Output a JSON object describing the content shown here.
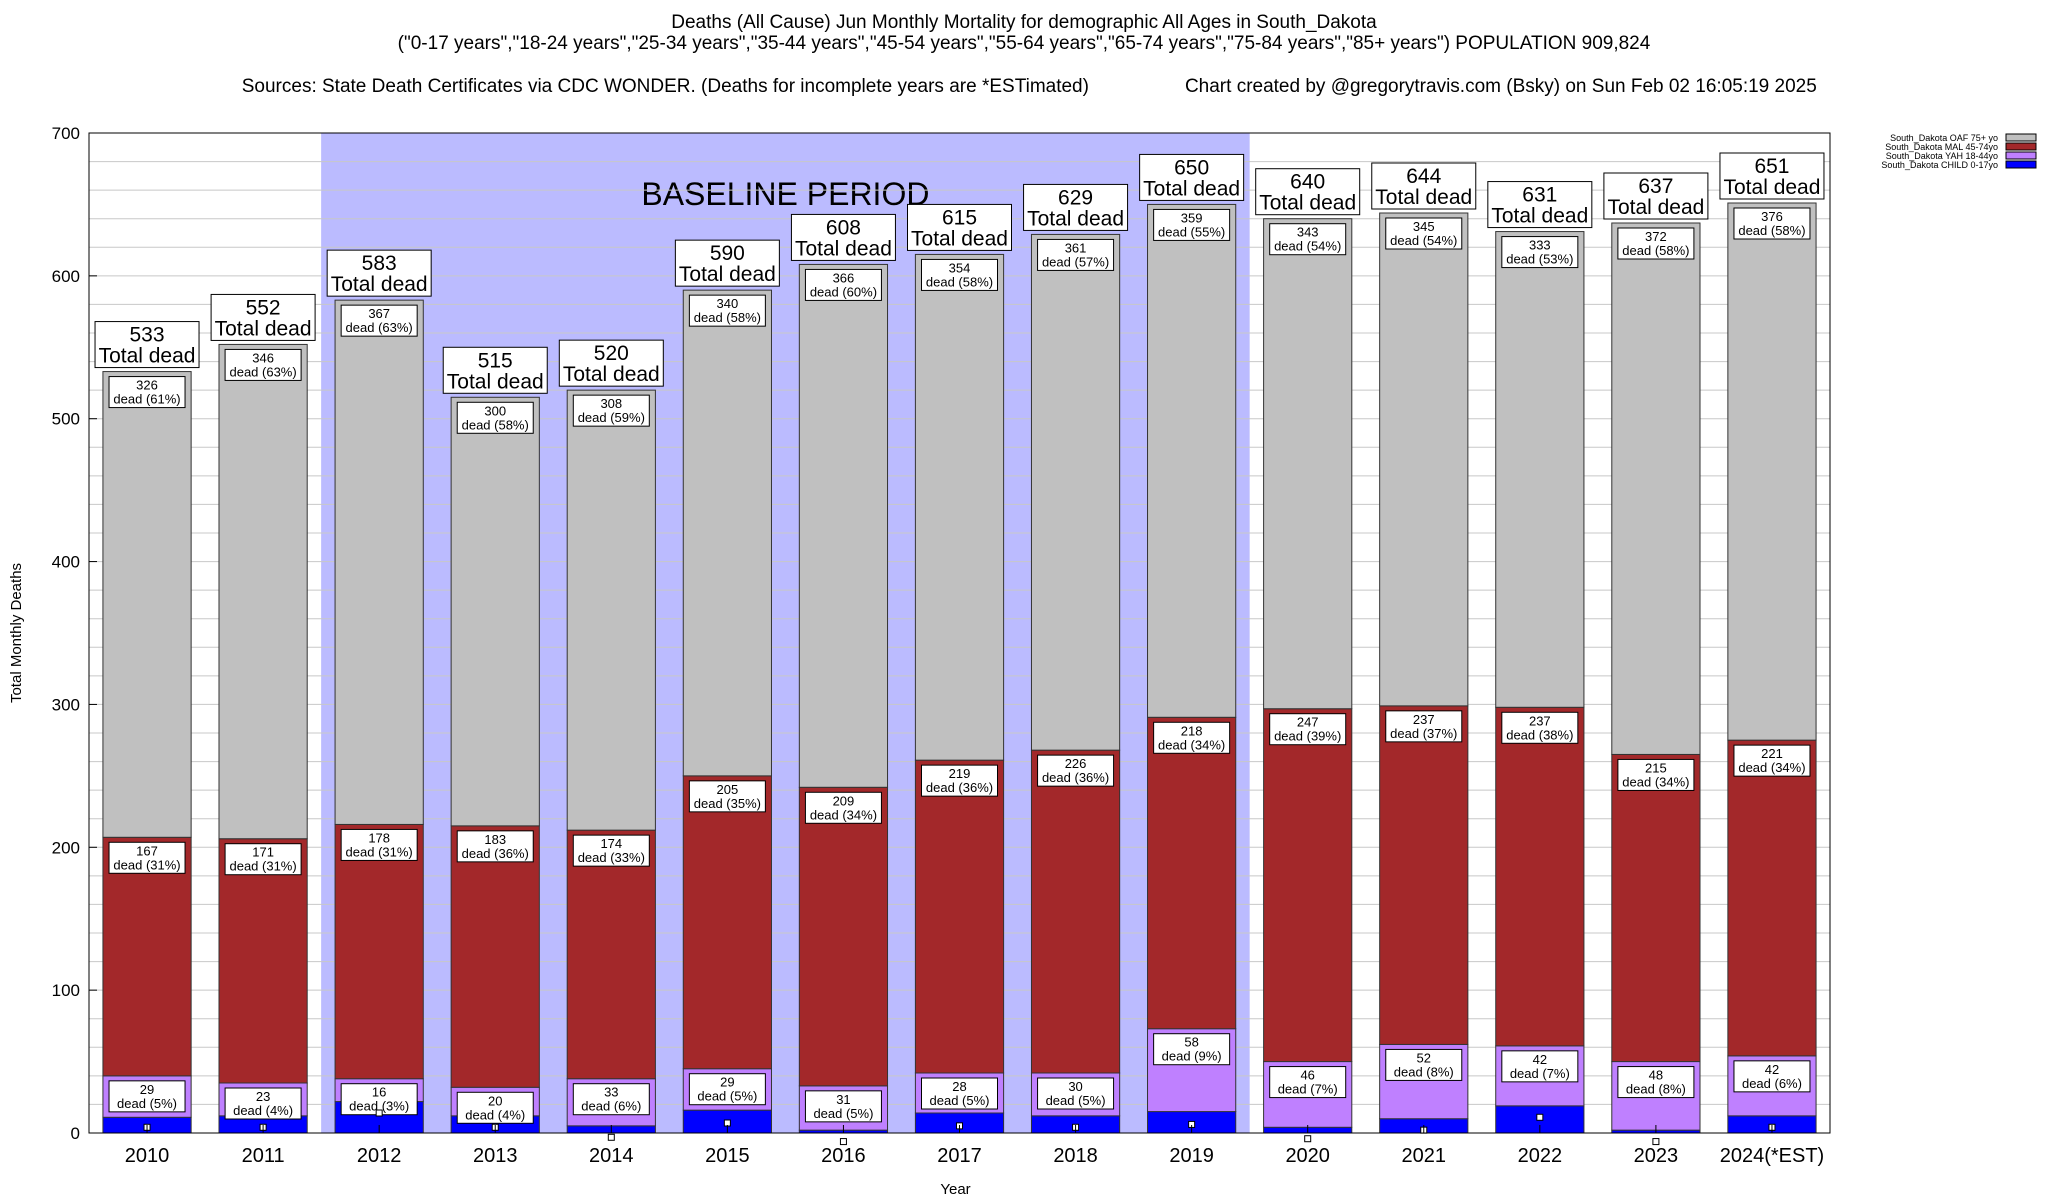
{
  "header": {
    "title": "Deaths (All Cause) Jun Monthly Mortality for demographic All Ages in South_Dakota",
    "subtitle": "(\"0-17 years\",\"18-24 years\",\"25-34 years\",\"35-44 years\",\"45-54 years\",\"55-64 years\",\"65-74 years\",\"75-84 years\",\"85+ years\") POPULATION 909,824",
    "sources": "Sources: State Death Certificates via CDC WONDER. (Deaths for incomplete years are *ESTimated)",
    "credit": "Chart created by @gregorytravis.com (Bsky) on Sun Feb 02 16:05:19 2025"
  },
  "colors": {
    "child": "#0000ff",
    "yah": "#bf80ff",
    "mal": "#a3282a",
    "oaf": "#c0c0c0",
    "baseline": "#bbbbff",
    "grid": "#c8c8c8"
  },
  "chart_data": {
    "type": "bar",
    "stacked": true,
    "xlabel": "Year",
    "ylabel": "Total Monthly Deaths",
    "ylim": [
      0,
      700
    ],
    "yticks": [
      0,
      100,
      200,
      300,
      400,
      500,
      600,
      700
    ],
    "grid": true,
    "legend_position": "top-right",
    "baseline": {
      "label": "BASELINE PERIOD",
      "from": "2012",
      "to": "2019"
    },
    "total_label": "Total dead",
    "segment_label_prefix": "dead",
    "categories": [
      "2010",
      "2011",
      "2012",
      "2013",
      "2014",
      "2015",
      "2016",
      "2017",
      "2018",
      "2019",
      "2020",
      "2021",
      "2022",
      "2023",
      "2024(*EST)"
    ],
    "totals": [
      533,
      552,
      583,
      515,
      520,
      590,
      608,
      615,
      629,
      650,
      640,
      644,
      631,
      637,
      651
    ],
    "child_marker": [
      4,
      4,
      14,
      4,
      -3,
      7,
      -6,
      5,
      4,
      6,
      -4,
      2,
      11,
      -6,
      4
    ],
    "series": [
      {
        "key": "child",
        "name": "South_Dakota CHILD 0-17yo",
        "values": [
          11,
          12,
          22,
          12,
          5,
          16,
          2,
          14,
          12,
          15,
          4,
          10,
          19,
          2,
          12
        ],
        "labels": [
          null,
          null,
          null,
          null,
          null,
          null,
          null,
          null,
          null,
          null,
          null,
          null,
          null,
          null,
          null
        ],
        "pct": [
          null,
          null,
          null,
          null,
          null,
          null,
          null,
          null,
          null,
          null,
          null,
          null,
          null,
          null,
          null
        ]
      },
      {
        "key": "yah",
        "name": "South_Dakota YAH 18-44yo",
        "values": [
          29,
          23,
          16,
          20,
          33,
          29,
          31,
          28,
          30,
          58,
          46,
          52,
          42,
          48,
          42
        ],
        "labels": [
          "29",
          "23",
          "16",
          "20",
          "33",
          "29",
          "31",
          "28",
          "30",
          "58",
          "46",
          "52",
          "42",
          "48",
          "42"
        ],
        "pct": [
          "5%",
          "4%",
          "3%",
          "4%",
          "6%",
          "5%",
          "5%",
          "5%",
          "5%",
          "9%",
          "7%",
          "8%",
          "7%",
          "8%",
          "6%"
        ]
      },
      {
        "key": "mal",
        "name": "South_Dakota MAL 45-74yo",
        "values": [
          167,
          171,
          178,
          183,
          174,
          205,
          209,
          219,
          226,
          218,
          247,
          237,
          237,
          215,
          221
        ],
        "labels": [
          "167",
          "171",
          "178",
          "183",
          "174",
          "205",
          "209",
          "219",
          "226",
          "218",
          "247",
          "237",
          "237",
          "215",
          "221"
        ],
        "pct": [
          "31%",
          "31%",
          "31%",
          "36%",
          "33%",
          "35%",
          "34%",
          "36%",
          "36%",
          "34%",
          "39%",
          "37%",
          "38%",
          "34%",
          "34%"
        ]
      },
      {
        "key": "oaf",
        "name": "South_Dakota OAF 75+ yo",
        "values": [
          326,
          346,
          367,
          300,
          308,
          340,
          366,
          354,
          361,
          359,
          343,
          345,
          333,
          372,
          376
        ],
        "labels": [
          "326",
          "346",
          "367",
          "300",
          "308",
          "340",
          "366",
          "354",
          "361",
          "359",
          "343",
          "345",
          "333",
          "372",
          "376"
        ],
        "pct": [
          "61%",
          "63%",
          "63%",
          "58%",
          "59%",
          "58%",
          "60%",
          "58%",
          "57%",
          "55%",
          "54%",
          "54%",
          "53%",
          "58%",
          "58%"
        ]
      }
    ],
    "legend": [
      {
        "key": "oaf",
        "name": "South_Dakota OAF 75+ yo"
      },
      {
        "key": "mal",
        "name": "South_Dakota MAL 45-74yo"
      },
      {
        "key": "yah",
        "name": "South_Dakota YAH 18-44yo"
      },
      {
        "key": "child",
        "name": "South_Dakota CHILD 0-17yo"
      }
    ]
  }
}
